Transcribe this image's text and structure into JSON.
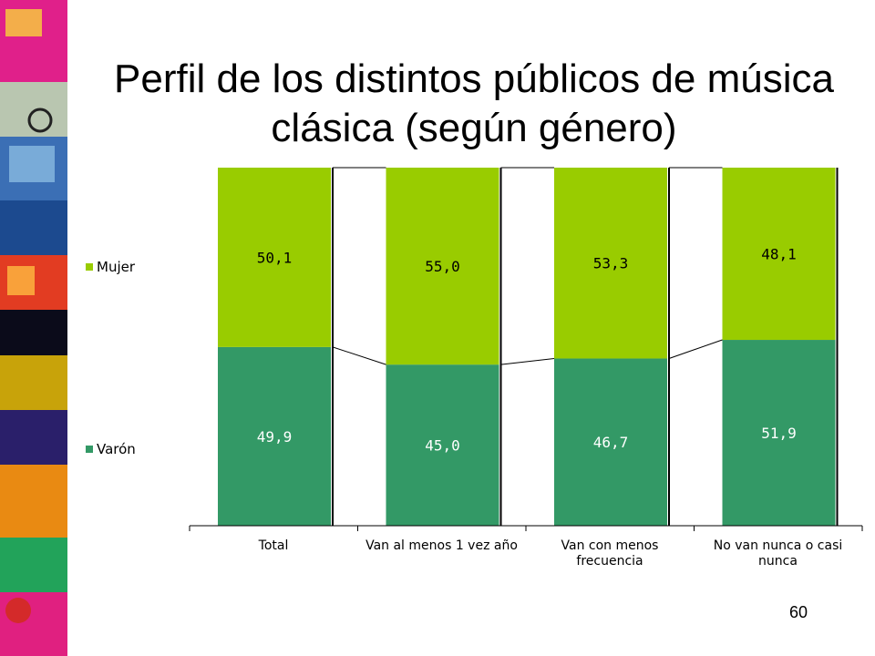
{
  "slide": {
    "title_line1": "Perfil de los distintos públicos de música",
    "title_line2": "clásica (según género)",
    "page_number": "60"
  },
  "colors": {
    "mujer": "#99cc00",
    "varon": "#339966",
    "connector": "#000000"
  },
  "chart_data": {
    "type": "bar",
    "stacked": true,
    "percent_stacked": true,
    "ylim": [
      0,
      100
    ],
    "categories": [
      "Total",
      "Van al menos 1 vez año",
      "Van con menos frecuencia",
      "No van nunca o casi nunca"
    ],
    "series": [
      {
        "name": "Varón",
        "values": [
          49.9,
          45.0,
          46.7,
          51.9
        ],
        "labels": [
          "49,9",
          "45,0",
          "46,7",
          "51,9"
        ]
      },
      {
        "name": "Mujer",
        "values": [
          50.1,
          55.0,
          53.3,
          48.1
        ],
        "labels": [
          "50,1",
          "55,0",
          "53,3",
          "48,1"
        ]
      }
    ],
    "legend_position": "left",
    "series_lines": true,
    "grid": false
  }
}
